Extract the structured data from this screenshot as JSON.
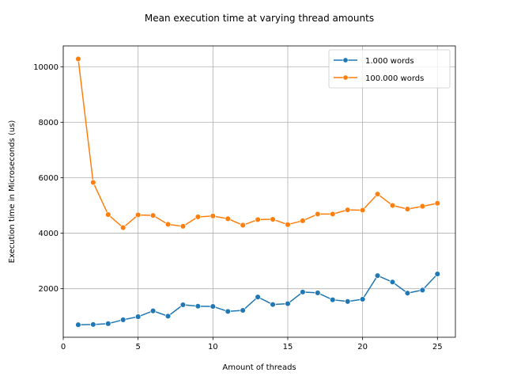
{
  "chart_data": {
    "type": "line",
    "title": "Mean execution time at varying thread amounts",
    "xlabel": "Amount of threads",
    "ylabel": "Execution time in Microseconds (us)",
    "x": [
      1,
      2,
      3,
      4,
      5,
      6,
      7,
      8,
      9,
      10,
      11,
      12,
      13,
      14,
      15,
      16,
      17,
      18,
      19,
      20,
      21,
      22,
      23,
      24,
      25
    ],
    "xlim": [
      0,
      26.2
    ],
    "ylim": [
      250,
      10750
    ],
    "xticks": [
      0,
      5,
      10,
      15,
      20,
      25
    ],
    "yticks": [
      2000,
      4000,
      6000,
      8000,
      10000
    ],
    "grid": true,
    "legend_position": "top-right",
    "series": [
      {
        "name": "1.000 words",
        "color": "#1f77b4",
        "marker": "circle",
        "values": [
          700,
          710,
          740,
          880,
          990,
          1200,
          1010,
          1420,
          1370,
          1360,
          1180,
          1220,
          1700,
          1430,
          1460,
          1880,
          1850,
          1600,
          1540,
          1620,
          2470,
          2240,
          1840,
          1950,
          2530
        ]
      },
      {
        "name": "100.000 words",
        "color": "#ff7f0e",
        "marker": "circle",
        "values": [
          10280,
          5830,
          4670,
          4200,
          4660,
          4640,
          4320,
          4250,
          4590,
          4620,
          4520,
          4290,
          4490,
          4500,
          4310,
          4450,
          4690,
          4690,
          4840,
          4830,
          5410,
          5000,
          4870,
          4970,
          5080
        ]
      }
    ]
  }
}
